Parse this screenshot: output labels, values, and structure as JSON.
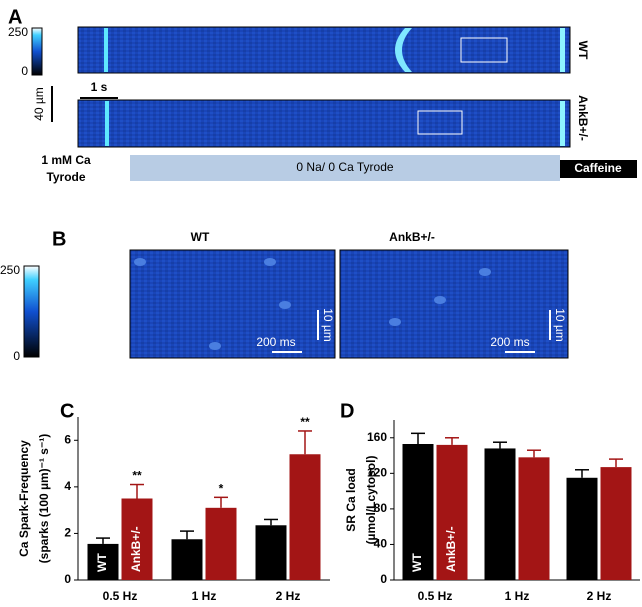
{
  "panel_a": {
    "label": "A",
    "colorbar_ticks": [
      250,
      0
    ],
    "row_labels": [
      "WT",
      "AnkB+/-"
    ],
    "time_scale": "1 s",
    "space_scale": "40 µm",
    "solutions": [
      "1 mM Ca",
      "Tyrode",
      "0 Na/ 0 Ca Tyrode",
      "Caffeine"
    ]
  },
  "panel_b": {
    "label": "B",
    "titles": [
      "WT",
      "AnkB+/-"
    ],
    "colorbar_ticks": [
      250,
      0
    ],
    "time_scale": "200 ms",
    "space_scale": "10 µm"
  },
  "chart_data": [
    {
      "type": "bar",
      "panel": "C",
      "ylabel": [
        "Ca Spark-Frequency",
        "(sparks (100 µm)⁻¹ s⁻¹)"
      ],
      "categories": [
        "0.5 Hz",
        "1 Hz",
        "2 Hz"
      ],
      "series": [
        {
          "name": "WT",
          "color": "#000000",
          "values": [
            1.55,
            1.75,
            2.35
          ],
          "errors": [
            0.25,
            0.35,
            0.25
          ]
        },
        {
          "name": "AnkB+/-",
          "color": "#a31515",
          "values": [
            3.5,
            3.1,
            5.4
          ],
          "errors": [
            0.6,
            0.45,
            1.0
          ],
          "significance": [
            "**",
            "*",
            "**"
          ]
        }
      ],
      "ylim": [
        0,
        7
      ],
      "yticks": [
        0,
        2,
        4,
        6
      ]
    },
    {
      "type": "bar",
      "panel": "D",
      "ylabel": [
        "SR Ca load",
        "(µmol/Lcytosol)"
      ],
      "categories": [
        "0.5 Hz",
        "1 Hz",
        "2 Hz"
      ],
      "series": [
        {
          "name": "WT",
          "color": "#000000",
          "values": [
            153,
            148,
            115
          ],
          "errors": [
            12,
            7,
            9
          ]
        },
        {
          "name": "AnkB+/-",
          "color": "#a31515",
          "values": [
            152,
            138,
            127
          ],
          "errors": [
            8,
            8,
            9
          ]
        }
      ],
      "ylim": [
        0,
        180
      ],
      "yticks": [
        0,
        40,
        80,
        120,
        160
      ]
    }
  ]
}
